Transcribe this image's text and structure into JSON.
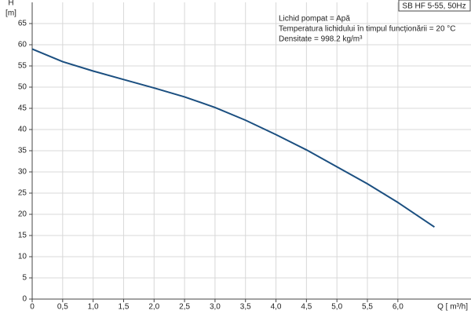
{
  "chart_data": {
    "type": "line",
    "title": "SB HF 5-55, 50Hz",
    "y_label": "H",
    "y_unit": "[m]",
    "x_label": "Q [ m³/h]",
    "annotations": [
      "Lichid pompat = Apă",
      " Temperatura lichidului în timpul funcționării = 20  °C",
      "Densitate = 998.2  kg/m³"
    ],
    "x": [
      0,
      0.5,
      1.0,
      1.5,
      2.0,
      2.5,
      3.0,
      3.5,
      4.0,
      4.5,
      5.0,
      5.5,
      6.0,
      6.6
    ],
    "series": [
      {
        "name": "SB HF 5-55, 50Hz",
        "color": "#1b4f80",
        "values": [
          59,
          56,
          53.8,
          51.8,
          49.8,
          47.7,
          45.2,
          42.2,
          38.8,
          35.2,
          31.2,
          27.2,
          22.8,
          17
        ]
      }
    ],
    "xlim": [
      0,
      7.2
    ],
    "ylim": [
      0,
      70
    ],
    "xticks": [
      0,
      {
        "value": 0.5,
        "label": "0,5"
      },
      {
        "value": 1,
        "label": "1,0"
      },
      {
        "value": 1.5,
        "label": "1,5"
      },
      {
        "value": 2,
        "label": "2,0"
      },
      {
        "value": 2.5,
        "label": "2,5"
      },
      {
        "value": 3,
        "label": "3,0"
      },
      {
        "value": 3.5,
        "label": "3,5"
      },
      {
        "value": 4,
        "label": "4,0"
      },
      {
        "value": 4.5,
        "label": "4,5"
      },
      {
        "value": 5,
        "label": "5,0"
      },
      {
        "value": 5.5,
        "label": "5,5"
      },
      {
        "value": 6,
        "label": "6,0"
      }
    ],
    "yticks": [
      0,
      5,
      10,
      15,
      20,
      25,
      30,
      35,
      40,
      45,
      50,
      55,
      60,
      65
    ],
    "grid": true
  }
}
